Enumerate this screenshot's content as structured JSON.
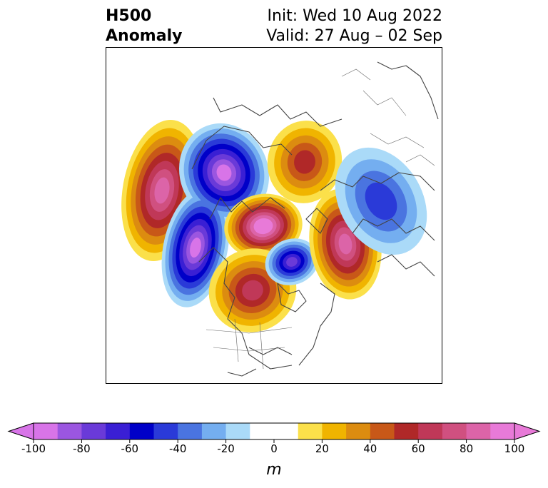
{
  "title": {
    "left_line1": "H500",
    "left_line2": "Anomaly",
    "right_line1": "Init: Wed 10 Aug 2022",
    "right_line2": "Valid: 27 Aug – 02 Sep"
  },
  "colorbar": {
    "unit": "m",
    "ticks": [
      "-100",
      "-80",
      "-60",
      "-40",
      "-20",
      "0",
      "20",
      "40",
      "60",
      "80",
      "100"
    ],
    "tick_values": [
      -100,
      -80,
      -60,
      -40,
      -20,
      0,
      20,
      40,
      60,
      80,
      100
    ],
    "bounds": [
      -100,
      100
    ],
    "step": 10,
    "extend": "both",
    "colors": [
      "#d874e8",
      "#9b56e0",
      "#6a3ad8",
      "#3a1fd4",
      "#0000c8",
      "#2a3ad8",
      "#4a74e0",
      "#74aef0",
      "#aadaf8",
      "#ffffff",
      "#ffffff",
      "#fbe04a",
      "#f0b400",
      "#dc8c10",
      "#c85818",
      "#b02828",
      "#c03858",
      "#d05080",
      "#dc64a8",
      "#e87ad8"
    ],
    "under_color": "#d874e8",
    "over_color": "#e87ad8"
  },
  "map": {
    "projection": "north-polar-stereographic",
    "field": "500 hPa geopotential height anomaly",
    "anomaly_centers": [
      {
        "region": "north-pacific",
        "sign": "positive",
        "peak": 60
      },
      {
        "region": "gulf-of-alaska",
        "sign": "negative",
        "peak": -80
      },
      {
        "region": "arctic-canada",
        "sign": "positive",
        "peak": 100
      },
      {
        "region": "hudson-bay",
        "sign": "negative",
        "peak": -70
      },
      {
        "region": "central-north-america",
        "sign": "positive",
        "peak": 60
      },
      {
        "region": "europe-scandinavia",
        "sign": "positive",
        "peak": 80
      },
      {
        "region": "north-siberia",
        "sign": "positive",
        "peak": 60
      },
      {
        "region": "west-russia",
        "sign": "negative",
        "peak": -40
      }
    ]
  }
}
